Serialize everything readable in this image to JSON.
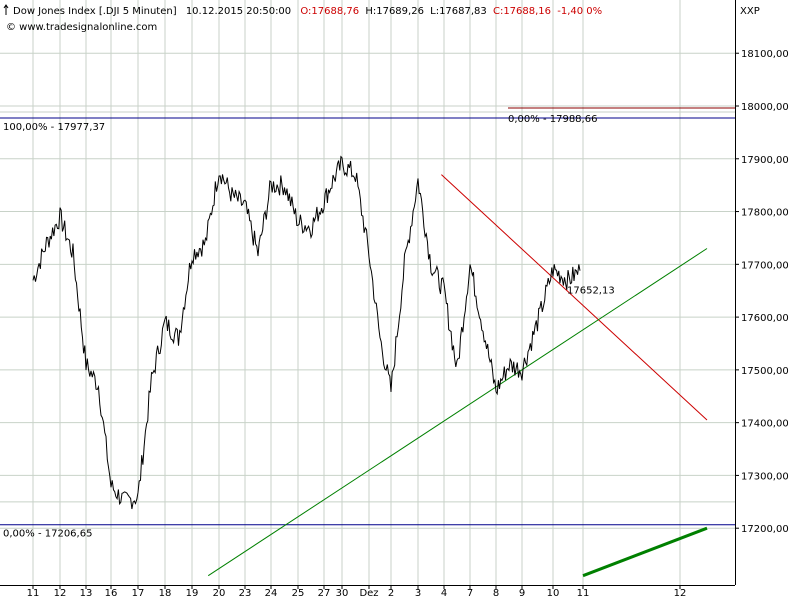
{
  "header": {
    "instrument": "Dow Jones Index [.DJI  5 Minuten]",
    "datetime": "10.12.2015 20:50:00",
    "open": "O:17688,76",
    "high": "H:17689,26",
    "low": "L:17687,83",
    "close": "C:17688,16",
    "change": "-1,40 0%",
    "source": "© www.tradesignalonline.com",
    "axis_tag": "XXP"
  },
  "colors": {
    "price": "#000000",
    "fib": "#00008b",
    "resistance": "#cc0000",
    "support": "#008000",
    "grid": "#c8d2c8"
  },
  "chart_data": {
    "type": "line",
    "x_axis_labels": [
      "11",
      "12",
      "13",
      "16",
      "17",
      "18",
      "19",
      "20",
      "23",
      "24",
      "25",
      "27",
      "30",
      "Dez",
      "2",
      "3",
      "4",
      "7",
      "8",
      "9",
      "10",
      "11",
      "12"
    ],
    "y_axis_ticks": [
      "18100,00",
      "18000,00",
      "17900,00",
      "17800,00",
      "17700,00",
      "17600,00",
      "17500,00",
      "17400,00",
      "17300,00",
      "17200,00"
    ],
    "ylim": [
      17100,
      18170
    ],
    "grid": true,
    "series": [
      {
        "kind": "price",
        "x": [
          0,
          0.5,
          1,
          1.5,
          2,
          2.5,
          3,
          3.5,
          4,
          4.5,
          5,
          5.5,
          6,
          6.5,
          7,
          7.5,
          8,
          8.5,
          9,
          9.5,
          10,
          10.5,
          11,
          11.5,
          12,
          12.5,
          13,
          13.5,
          14,
          14.5,
          15,
          15.5,
          16,
          16.5,
          17,
          17.5,
          18,
          18.5,
          19,
          19.5,
          20,
          20.5,
          20.9
        ],
        "values": [
          17670,
          17740,
          17790,
          17720,
          17510,
          17470,
          17280,
          17250,
          17260,
          17480,
          17590,
          17560,
          17720,
          17740,
          17880,
          17830,
          17810,
          17720,
          17850,
          17850,
          17780,
          17770,
          17820,
          17860,
          17890,
          17870,
          17720,
          17560,
          17460,
          17700,
          17860,
          17700,
          17650,
          17500,
          17700,
          17580,
          17460,
          17510,
          17500,
          17590,
          17690,
          17670,
          17688
        ]
      }
    ],
    "annotations": [
      {
        "label": "100,00% - 17977,37",
        "value": 17977.37,
        "kind": "fib"
      },
      {
        "label": "0,00% - 17206,65",
        "value": 17206.65,
        "kind": "fib"
      },
      {
        "label": "0,00% - 17988,66",
        "value": 17988.66,
        "kind": "level"
      },
      {
        "label": "17652,13",
        "value": 17652.13,
        "kind": "trendline"
      }
    ],
    "trendlines": [
      {
        "kind": "resistance",
        "x": [
          15.9,
          22.9
        ],
        "values": [
          17870,
          17405
        ]
      },
      {
        "kind": "support",
        "x": [
          6.6,
          22.9
        ],
        "values": [
          17110,
          17730
        ]
      },
      {
        "kind": "support",
        "x": [
          21.0,
          22.9
        ],
        "values": [
          17110,
          17200
        ]
      }
    ]
  }
}
